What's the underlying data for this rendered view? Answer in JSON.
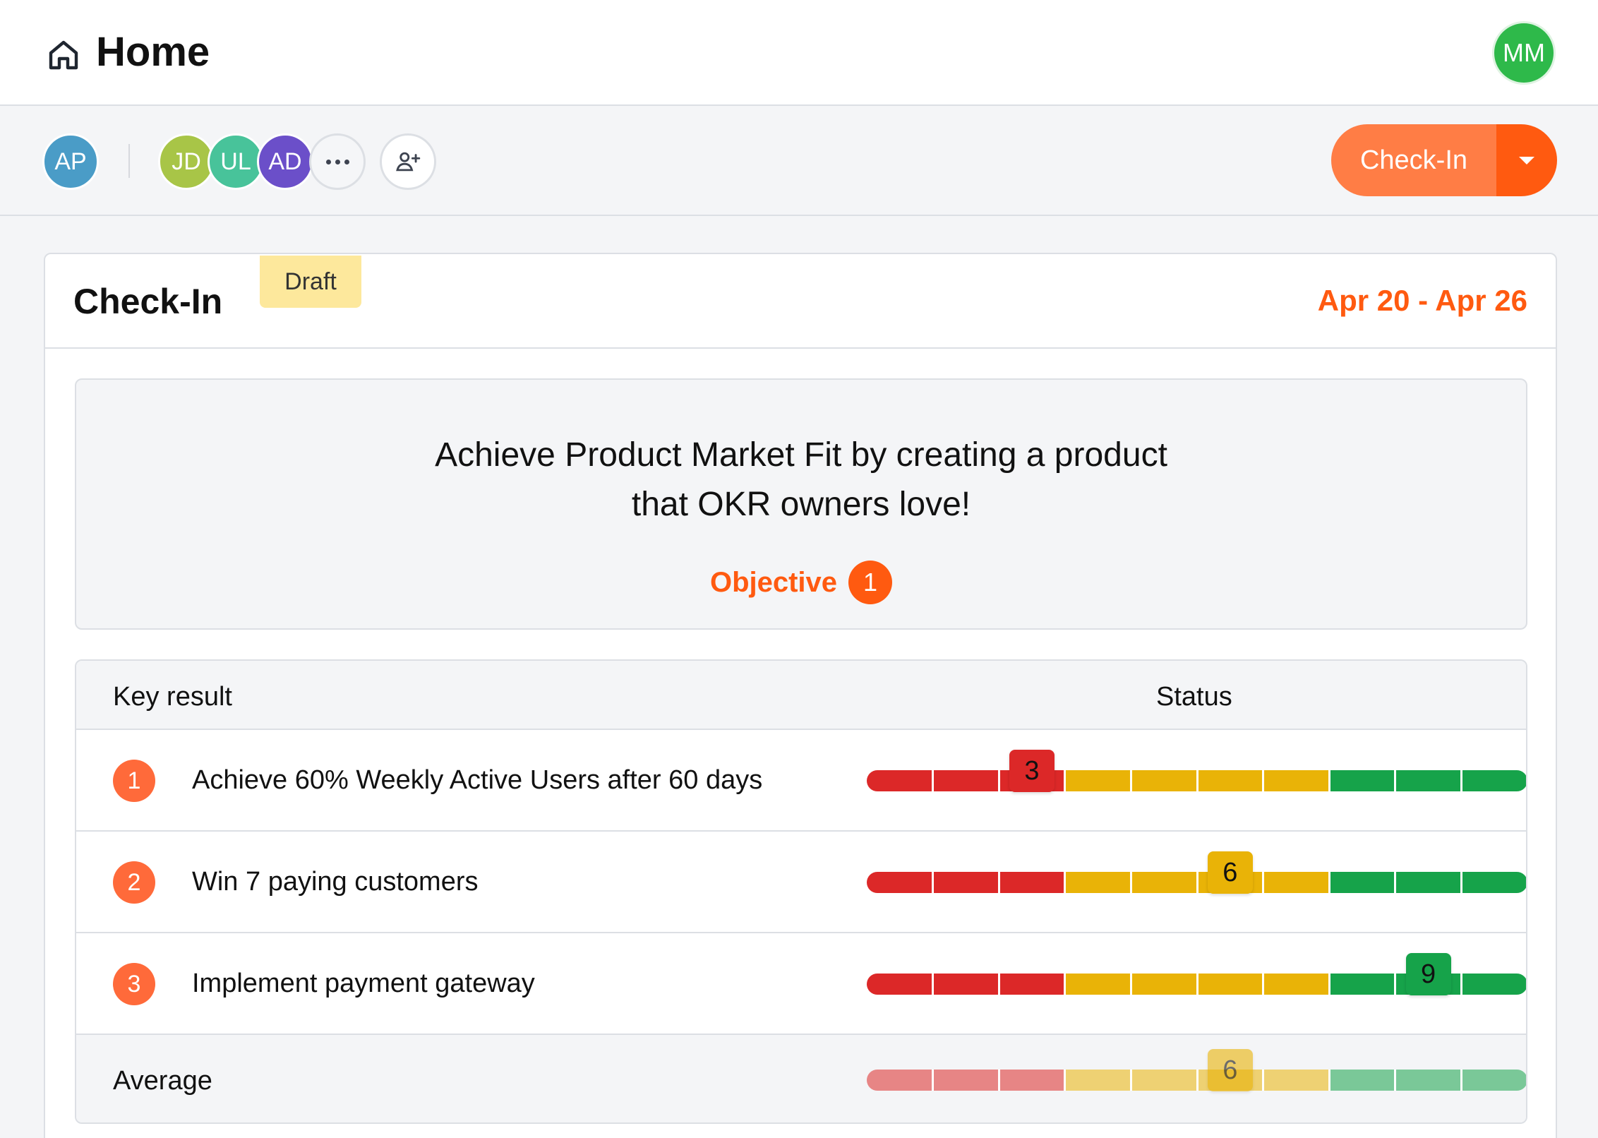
{
  "header": {
    "title": "Home",
    "user_initials": "MM"
  },
  "toolbar": {
    "owner": {
      "initials": "AP",
      "color": "#4a9cc7"
    },
    "members": [
      {
        "initials": "JD",
        "color": "#a8c547"
      },
      {
        "initials": "UL",
        "color": "#48c39a"
      },
      {
        "initials": "AD",
        "color": "#6b4fc9"
      }
    ],
    "checkin_button": "Check-In"
  },
  "card": {
    "title": "Check-In",
    "badge": "Draft",
    "date_range": "Apr 20 - Apr 26",
    "objective": {
      "line1": "Achieve Product Market Fit by creating a product",
      "line2": "that OKR owners love!",
      "label": "Objective",
      "number": "1"
    },
    "table": {
      "col_key": "Key result",
      "col_status": "Status",
      "rows": [
        {
          "number": "1",
          "text": "Achieve 60% Weekly Active Users after 60 days",
          "score": 3
        },
        {
          "number": "2",
          "text": "Win 7 paying customers",
          "score": 6
        },
        {
          "number": "3",
          "text": "Implement payment gateway",
          "score": 9
        }
      ],
      "average_label": "Average",
      "average_score": 6
    }
  },
  "colors": {
    "red": "#dc2828",
    "yellow": "#e9b307",
    "green": "#16a34a",
    "accent": "#ff5a10"
  }
}
